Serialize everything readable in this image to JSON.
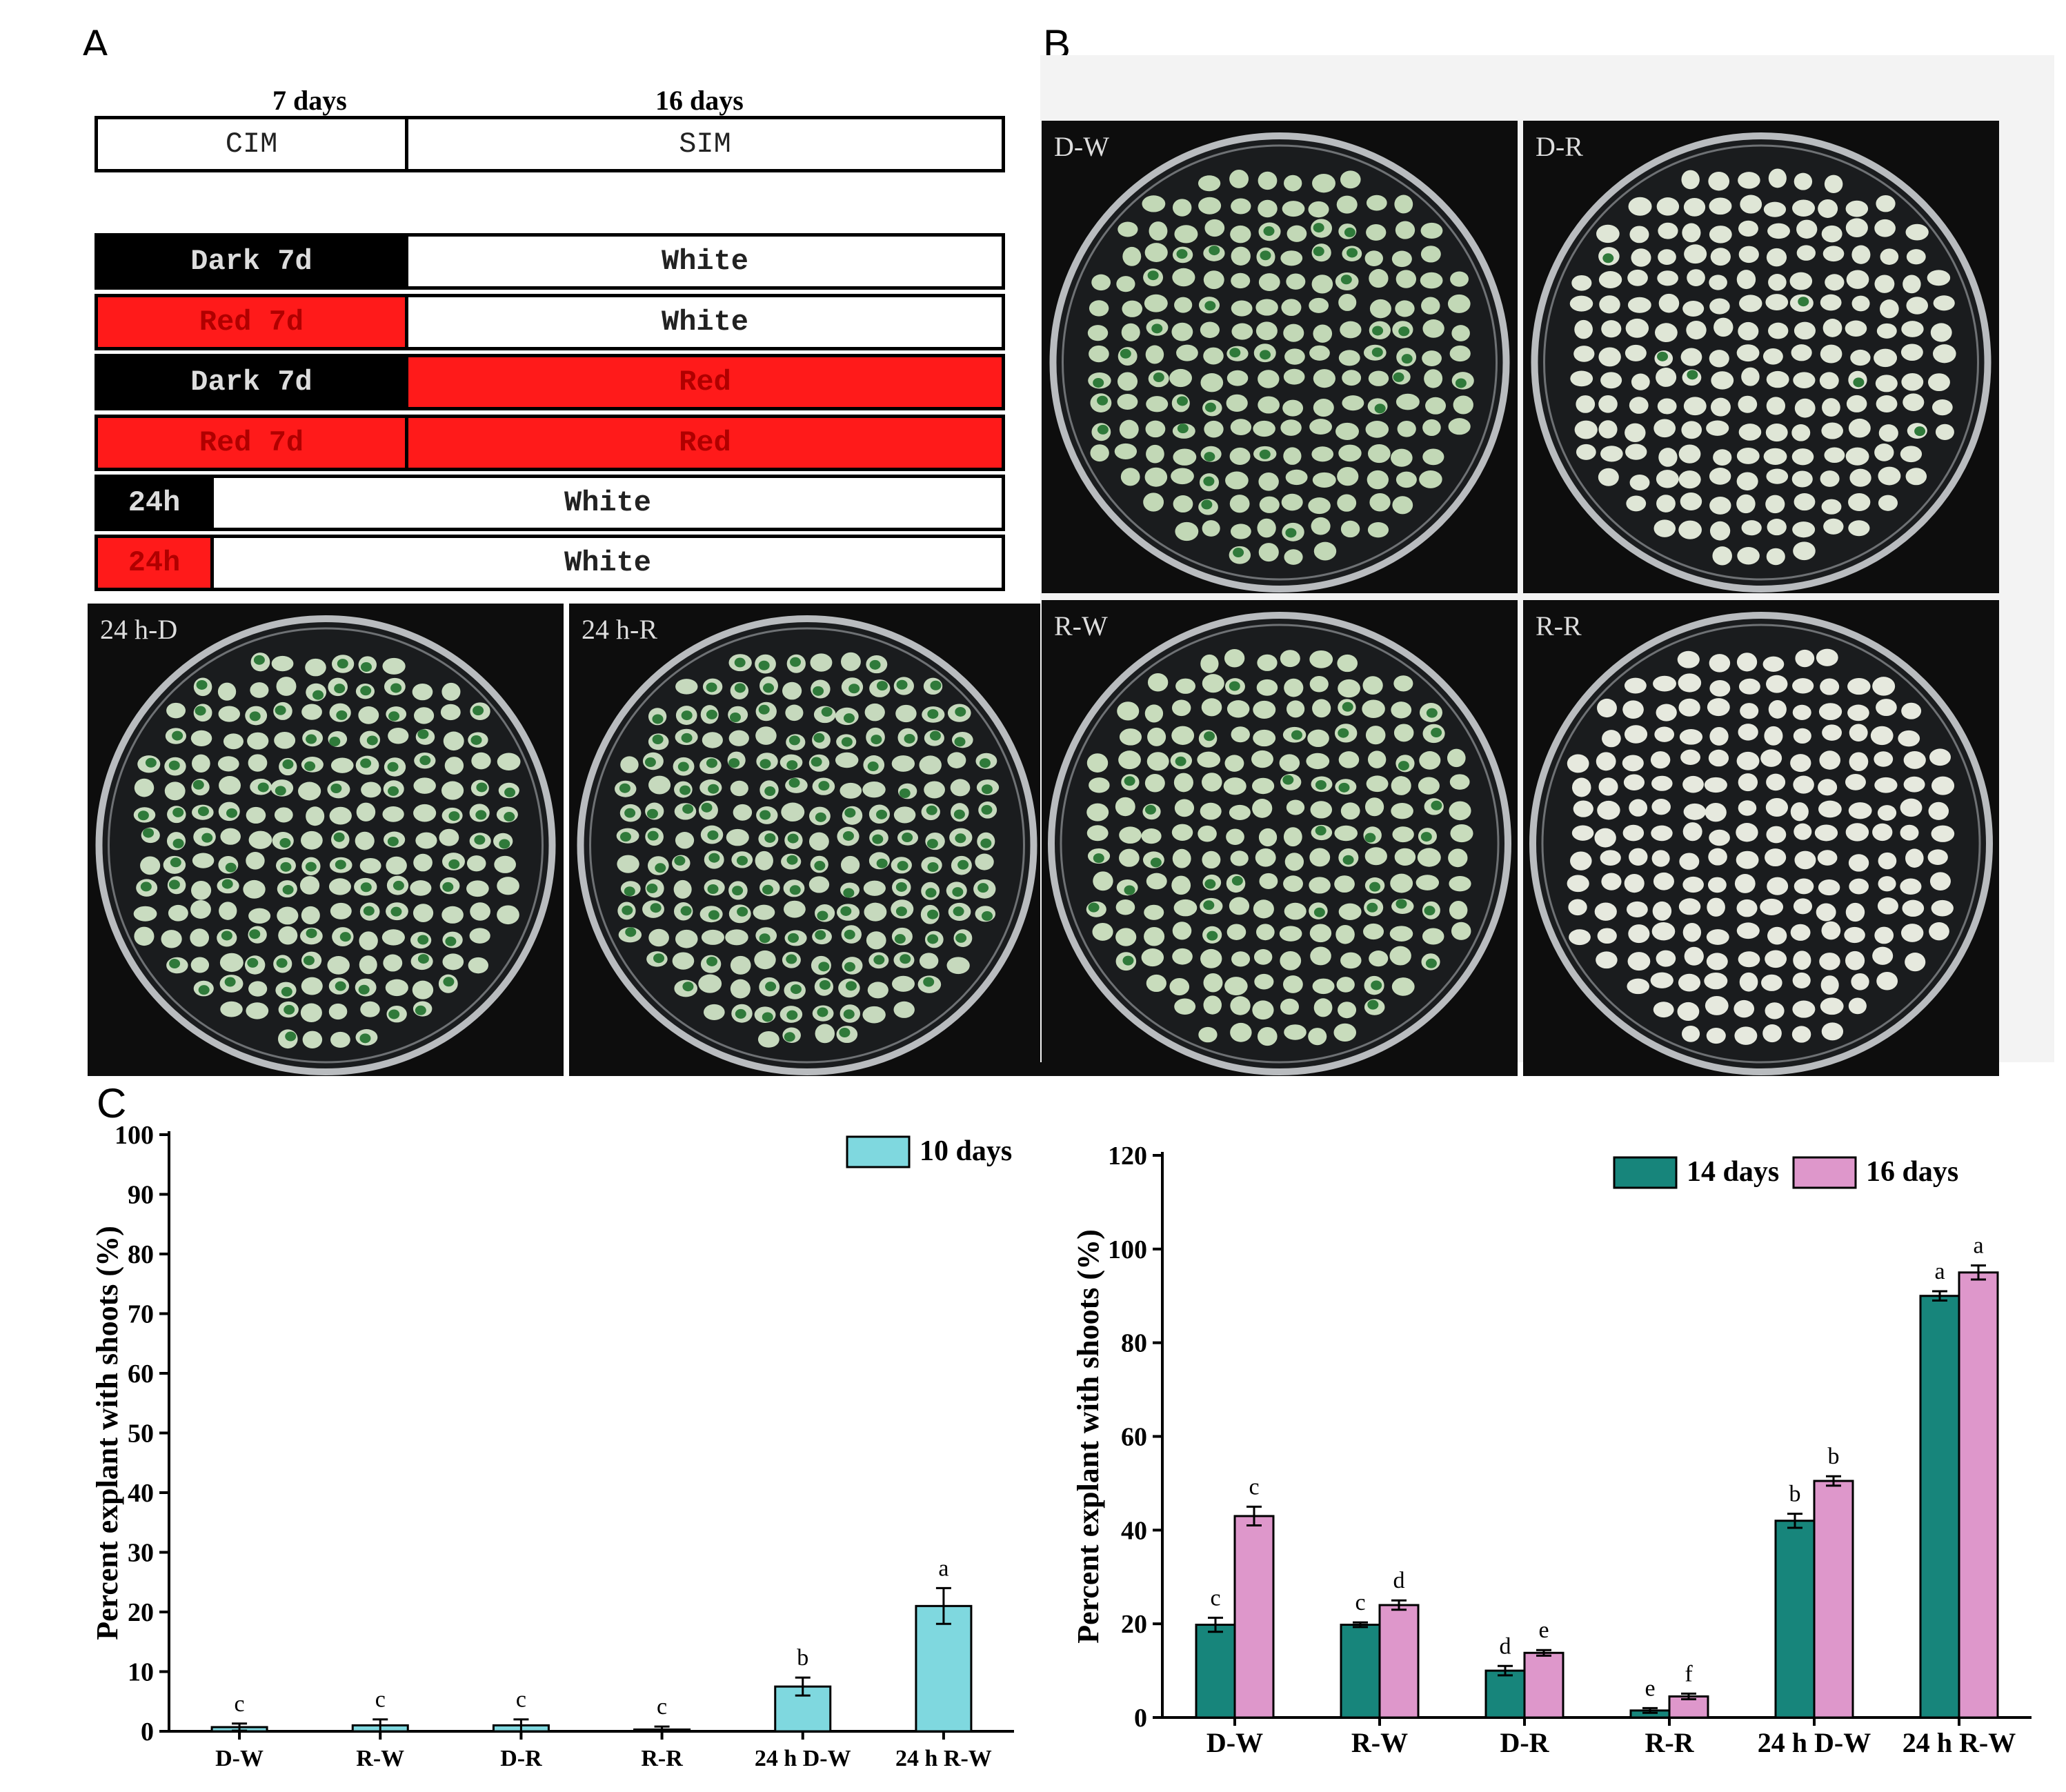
{
  "figure": {
    "panel_labels": {
      "a": "A",
      "b": "B",
      "c": "C"
    }
  },
  "schedule": {
    "header_times": [
      "7 days",
      "16 days"
    ],
    "header_media": [
      "CIM",
      "SIM"
    ],
    "rows": [
      {
        "pre": "Dark 7d",
        "pre_color": "black",
        "post": "White",
        "post_color": "white",
        "kind": "week"
      },
      {
        "pre": "Red 7d",
        "pre_color": "red",
        "post": "White",
        "post_color": "white",
        "kind": "week"
      },
      {
        "pre": "Dark 7d",
        "pre_color": "black",
        "post": "Red",
        "post_color": "red",
        "kind": "week"
      },
      {
        "pre": "Red 7d",
        "pre_color": "red",
        "post": "Red",
        "post_color": "red",
        "kind": "week"
      },
      {
        "pre": "24h",
        "pre_color": "black",
        "post": "White",
        "post_color": "white",
        "kind": "day"
      },
      {
        "pre": "24h",
        "pre_color": "red",
        "post": "White",
        "post_color": "white",
        "kind": "day"
      }
    ]
  },
  "plates": {
    "a_24h_d": {
      "label": "24 h-D",
      "green": 0.55,
      "explant_color": "#c9dcc0"
    },
    "a_24h_r": {
      "label": "24 h-R",
      "green": 0.7,
      "explant_color": "#c6d9bd"
    },
    "b_dw": {
      "label": "D-W",
      "green": 0.2,
      "explant_color": "#c2d8b6"
    },
    "b_dr": {
      "label": "D-R",
      "green": 0.03,
      "explant_color": "#dfe6d6"
    },
    "b_rw": {
      "label": "R-W",
      "green": 0.15,
      "explant_color": "#c8dcbc"
    },
    "b_rr": {
      "label": "R-R",
      "green": 0.0,
      "explant_color": "#e6e9de"
    }
  },
  "chart_data": [
    {
      "type": "bar",
      "title": "",
      "xlabel": "",
      "ylabel": "Percent explant with shoots (%)",
      "categories": [
        "D-W",
        "R-W",
        "D-R",
        "R-R",
        "24 h D-W",
        "24 h R-W"
      ],
      "series": [
        {
          "name": "10 days",
          "color": "#7fd8df",
          "values": [
            0.7,
            1.0,
            1.0,
            0.3,
            7.5,
            21
          ],
          "errors": [
            0.6,
            1.0,
            1.0,
            0.5,
            1.5,
            3.0
          ],
          "letters": [
            "c",
            "c",
            "c",
            "c",
            "b",
            "a"
          ]
        }
      ],
      "ylim": [
        0,
        100
      ],
      "yticks": [
        "0",
        "10",
        "20",
        "30",
        "40",
        "50",
        "60",
        "70",
        "80",
        "90",
        "100"
      ],
      "legend": "top-right"
    },
    {
      "type": "bar",
      "title": "",
      "xlabel": "",
      "ylabel": "Percent explant with shoots (%)",
      "categories": [
        "D-W",
        "R-W",
        "D-R",
        "R-R",
        "24 h D-W",
        "24 h R-W"
      ],
      "series": [
        {
          "name": "14 days",
          "color": "#17857b",
          "values": [
            19.8,
            19.8,
            10,
            1.5,
            42,
            90
          ],
          "errors": [
            1.5,
            0.5,
            1.0,
            0.5,
            1.5,
            1.0
          ],
          "letters": [
            "c",
            "c",
            "d",
            "e",
            "b",
            "a"
          ]
        },
        {
          "name": "16 days",
          "color": "#de97cb",
          "values": [
            43,
            24,
            13.8,
            4.5,
            50.5,
            95
          ],
          "errors": [
            2.0,
            1.0,
            0.6,
            0.6,
            1.0,
            1.5
          ],
          "letters": [
            "c",
            "d",
            "e",
            "f",
            "b",
            "a"
          ]
        }
      ],
      "ylim": [
        0,
        120
      ],
      "yticks": [
        "0",
        "20",
        "40",
        "60",
        "80",
        "100",
        "120"
      ],
      "legend": "top-right"
    }
  ]
}
